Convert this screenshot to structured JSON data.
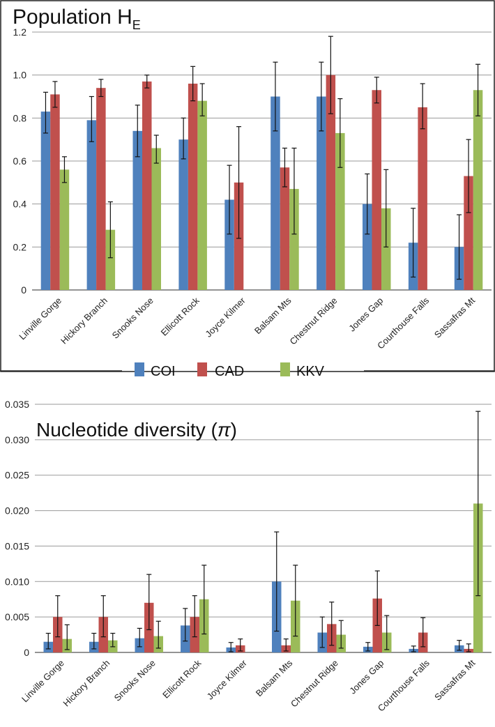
{
  "chart_data": [
    {
      "type": "bar",
      "title": "Population H",
      "title_sub": "E",
      "categories": [
        "Linville Gorge",
        "Hickory Branch",
        "Snooks Nose",
        "Ellicott Rock",
        "Joyce Kilmer",
        "Balsam Mts",
        "Chestnut Ridge",
        "Jones Gap",
        "Courthouse Falls",
        "Sassafras Mt"
      ],
      "ylim": [
        0,
        1.2
      ],
      "yticks": [
        "0",
        "0.2",
        "0.4",
        "0.6",
        "0.8",
        "1.0",
        "1.2"
      ],
      "grid": true,
      "series": [
        {
          "name": "COI",
          "values": [
            0.83,
            0.79,
            0.74,
            0.7,
            0.42,
            0.9,
            0.9,
            0.4,
            0.22,
            0.2
          ],
          "err_low": [
            0.73,
            0.69,
            0.62,
            0.61,
            0.26,
            0.74,
            0.74,
            0.26,
            0.06,
            0.05
          ],
          "err_high": [
            0.92,
            0.9,
            0.86,
            0.8,
            0.58,
            1.06,
            1.06,
            0.54,
            0.38,
            0.35
          ]
        },
        {
          "name": "CAD",
          "values": [
            0.91,
            0.94,
            0.97,
            0.96,
            0.5,
            0.57,
            1.0,
            0.93,
            0.85,
            0.53
          ],
          "err_low": [
            0.85,
            0.9,
            0.94,
            0.88,
            0.24,
            0.48,
            0.82,
            0.87,
            0.75,
            0.36
          ],
          "err_high": [
            0.97,
            0.98,
            1.0,
            1.04,
            0.76,
            0.66,
            1.18,
            0.99,
            0.96,
            0.7
          ]
        },
        {
          "name": "KKV",
          "values": [
            0.56,
            0.28,
            0.66,
            0.88,
            null,
            0.47,
            0.73,
            0.38,
            null,
            0.93
          ],
          "err_low": [
            0.5,
            0.15,
            0.59,
            0.81,
            null,
            0.26,
            0.57,
            0.2,
            null,
            0.81
          ],
          "err_high": [
            0.62,
            0.41,
            0.72,
            0.96,
            null,
            0.66,
            0.89,
            0.56,
            null,
            1.05
          ]
        }
      ]
    },
    {
      "type": "bar",
      "title": "Nucleotide diversity (",
      "title_symbol": "π",
      "title_end": ")",
      "categories": [
        "Linville Gorge",
        "Hickory Branch",
        "Snooks Nose",
        "Ellicott Rock",
        "Joyce Kilmer",
        "Balsam Mts",
        "Chestnut Ridge",
        "Jones Gap",
        "Courthouse Falls",
        "Sassafras Mt"
      ],
      "ylim": [
        0,
        0.035
      ],
      "yticks": [
        "0",
        "0.005",
        "0.010",
        "0.015",
        "0.020",
        "0.025",
        "0.030",
        "0.035"
      ],
      "grid": true,
      "series": [
        {
          "name": "COI",
          "values": [
            0.0015,
            0.0015,
            0.002,
            0.0038,
            0.0007,
            0.01,
            0.0028,
            0.0008,
            0.0005,
            0.001
          ],
          "err_low": [
            0.0005,
            0.0005,
            0.0008,
            0.0016,
            0.0001,
            0.003,
            0.0007,
            0.0002,
            0.0001,
            0.0003
          ],
          "err_high": [
            0.0027,
            0.0027,
            0.0034,
            0.0062,
            0.0014,
            0.017,
            0.005,
            0.0014,
            0.0009,
            0.0017
          ]
        },
        {
          "name": "CAD",
          "values": [
            0.005,
            0.005,
            0.007,
            0.005,
            0.001,
            0.001,
            0.004,
            0.0076,
            0.0028,
            0.0005
          ],
          "err_low": [
            0.0022,
            0.0022,
            0.0032,
            0.0022,
            0.0002,
            0.0002,
            0.001,
            0.0038,
            0.0008,
            0.0001
          ],
          "err_high": [
            0.008,
            0.008,
            0.011,
            0.008,
            0.0019,
            0.0019,
            0.0071,
            0.0115,
            0.0049,
            0.0012
          ]
        },
        {
          "name": "KKV",
          "values": [
            0.0019,
            0.0017,
            0.0023,
            0.0075,
            null,
            0.0073,
            0.0025,
            0.0028,
            null,
            0.021
          ],
          "err_low": [
            0.0004,
            0.0008,
            0.0006,
            0.0026,
            null,
            0.0023,
            0.0006,
            0.0004,
            null,
            0.008
          ],
          "err_high": [
            0.0039,
            0.0027,
            0.0044,
            0.0123,
            null,
            0.0123,
            0.0045,
            0.0052,
            null,
            0.034
          ]
        }
      ]
    }
  ],
  "legend": {
    "items": [
      {
        "name": "COI",
        "color": "#4f81bd"
      },
      {
        "name": "CAD",
        "color": "#c0504d"
      },
      {
        "name": "KKV",
        "color": "#9bbb59"
      }
    ]
  }
}
